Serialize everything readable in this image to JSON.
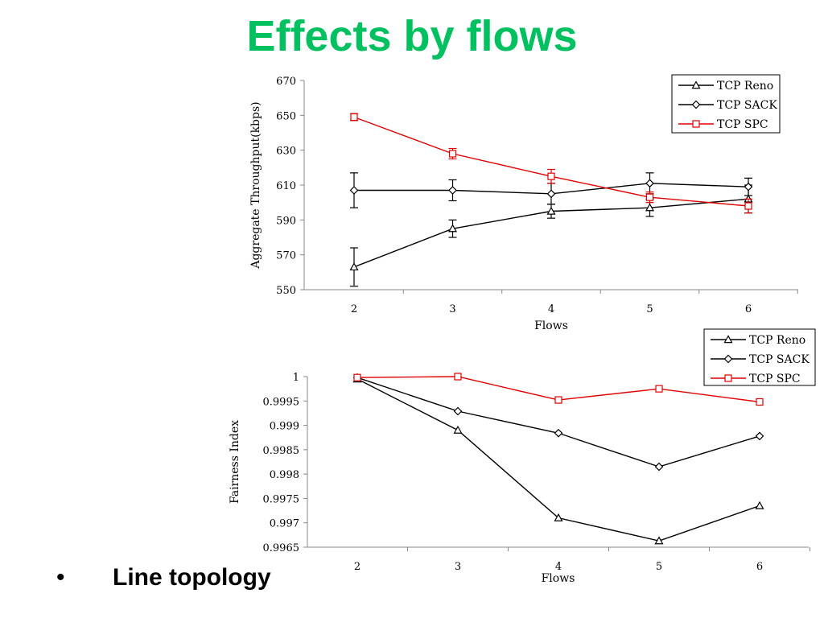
{
  "slide": {
    "title": "Effects by flows",
    "bullet_symbol": "•",
    "bullet_text": "Line topology"
  },
  "colors": {
    "title": "#00c060",
    "black_series": "#000000",
    "red_series": "#e00000"
  },
  "chart_data": [
    {
      "type": "line",
      "xlabel": "Flows",
      "ylabel": "Aggregate Throughput(kbps)",
      "x": [
        2,
        3,
        4,
        5,
        6
      ],
      "ylim": [
        550,
        670
      ],
      "yticks": [
        550,
        570,
        590,
        610,
        630,
        650,
        670
      ],
      "ytick_labels": [
        "550",
        "570",
        "590",
        "610",
        "630",
        "650",
        "670"
      ],
      "legend_position": "top-right",
      "series": [
        {
          "name": "TCP Reno",
          "marker": "triangle",
          "color": "#000000",
          "values": [
            563,
            585,
            595,
            597,
            602
          ],
          "errors": [
            11,
            5,
            4,
            5,
            8
          ]
        },
        {
          "name": "TCP SACK",
          "marker": "diamond",
          "color": "#000000",
          "values": [
            607,
            607,
            605,
            611,
            609
          ],
          "errors": [
            10,
            6,
            6,
            6,
            5
          ]
        },
        {
          "name": "TCP SPC",
          "marker": "square",
          "color": "#e00000",
          "values": [
            649,
            628,
            615,
            603,
            598
          ],
          "errors": [
            2,
            3,
            4,
            3,
            4
          ]
        }
      ]
    },
    {
      "type": "line",
      "xlabel": "Flows",
      "ylabel": "Fairness Index",
      "x": [
        2,
        3,
        4,
        5,
        6
      ],
      "ylim": [
        0.9965,
        1
      ],
      "yticks": [
        0.9965,
        0.997,
        0.9975,
        0.998,
        0.9985,
        0.999,
        0.9995,
        1
      ],
      "ytick_labels": [
        "0.9965",
        "0.997",
        "0.9975",
        "0.998",
        "0.9985",
        "0.999",
        "0.9995",
        "1"
      ],
      "legend_position": "top-right",
      "series": [
        {
          "name": "TCP Reno",
          "marker": "triangle",
          "color": "#000000",
          "values": [
            0.99995,
            0.9989,
            0.9971,
            0.99663,
            0.99735
          ]
        },
        {
          "name": "TCP SACK",
          "marker": "diamond",
          "color": "#000000",
          "values": [
            0.99998,
            0.99929,
            0.99884,
            0.99815,
            0.99878
          ]
        },
        {
          "name": "TCP SPC",
          "marker": "square",
          "color": "#e00000",
          "values": [
            0.99998,
            1.0,
            0.99952,
            0.99975,
            0.99948
          ]
        }
      ]
    }
  ]
}
